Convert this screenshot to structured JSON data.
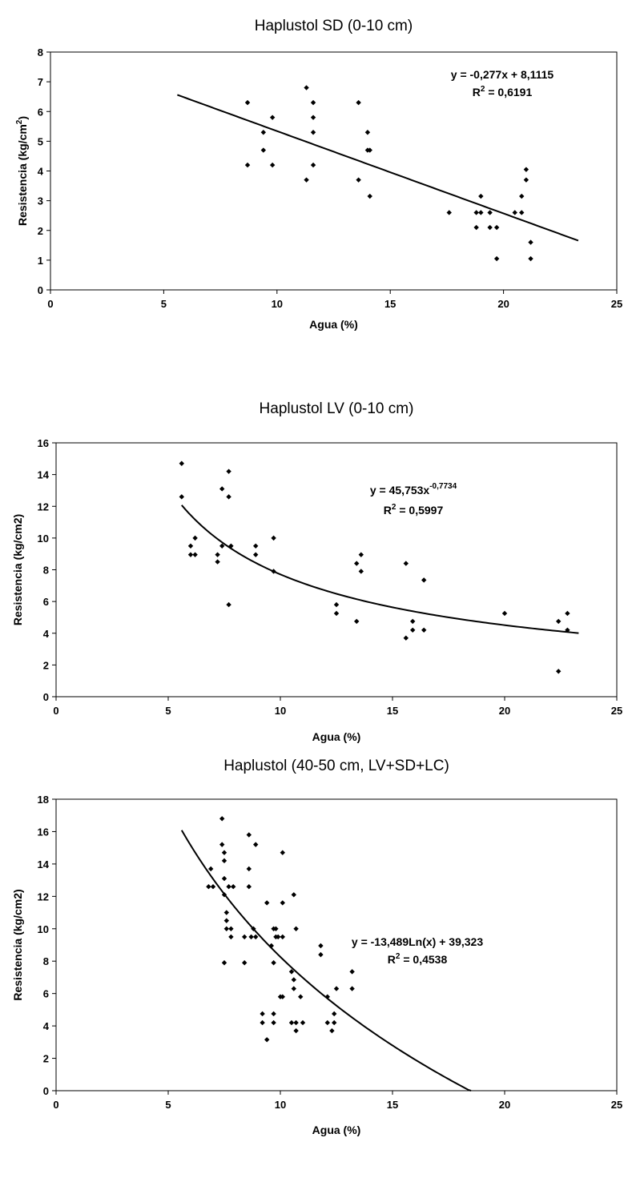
{
  "chart_data": [
    {
      "type": "scatter",
      "title": "Haplustol SD (0-10 cm)",
      "xlabel": "Agua (%)",
      "ylabel_main": "Resistencia (kg/cm",
      "ylabel_sup": "2",
      "ylabel_tail": ")",
      "xlim": [
        0,
        25
      ],
      "ylim": [
        0,
        8
      ],
      "xticks": [
        "0",
        "5",
        "10",
        "15",
        "20",
        "25"
      ],
      "yticks": [
        "0",
        "1",
        "2",
        "3",
        "4",
        "5",
        "6",
        "7",
        "8"
      ],
      "grid": false,
      "series": [
        {
          "points": [
            [
              8.7,
              6.3
            ],
            [
              8.7,
              4.2
            ],
            [
              9.4,
              5.3
            ],
            [
              9.4,
              4.7
            ],
            [
              9.8,
              5.8
            ],
            [
              9.8,
              4.2
            ],
            [
              11.3,
              6.8
            ],
            [
              11.3,
              3.7
            ],
            [
              11.6,
              6.3
            ],
            [
              11.6,
              5.8
            ],
            [
              11.6,
              5.3
            ],
            [
              11.6,
              4.2
            ],
            [
              13.6,
              6.3
            ],
            [
              13.6,
              3.7
            ],
            [
              14.0,
              5.3
            ],
            [
              14.0,
              4.7
            ],
            [
              14.1,
              4.7
            ],
            [
              14.1,
              3.15
            ],
            [
              17.6,
              2.6
            ],
            [
              18.8,
              2.6
            ],
            [
              18.8,
              2.1
            ],
            [
              19.0,
              3.15
            ],
            [
              19.0,
              2.6
            ],
            [
              19.4,
              2.6
            ],
            [
              19.4,
              2.1
            ],
            [
              19.7,
              2.1
            ],
            [
              19.7,
              1.05
            ],
            [
              20.5,
              2.6
            ],
            [
              20.8,
              3.15
            ],
            [
              20.8,
              2.6
            ],
            [
              21.0,
              4.05
            ],
            [
              21.0,
              3.7
            ],
            [
              21.2,
              1.6
            ],
            [
              21.2,
              1.05
            ]
          ]
        }
      ],
      "trendline": {
        "kind": "linear",
        "a": -0.277,
        "b": 8.1115,
        "x_range": [
          5.6,
          23.3
        ]
      },
      "equation": {
        "main": "y = -0,277x + 8,1115",
        "r2_prefix": "R",
        "r2_sup": "2",
        "r2_rest": " = 0,6191"
      }
    },
    {
      "type": "scatter",
      "title": "Haplustol LV (0-10 cm)",
      "xlabel": "Agua (%)",
      "ylabel_main": "Resistencia (kg/cm2)",
      "ylabel_sup": "",
      "ylabel_tail": "",
      "xlim": [
        0,
        25
      ],
      "ylim": [
        0,
        16
      ],
      "xticks": [
        "0",
        "5",
        "10",
        "15",
        "20",
        "25"
      ],
      "yticks": [
        "0",
        "2",
        "4",
        "6",
        "8",
        "10",
        "12",
        "14",
        "16"
      ],
      "grid": false,
      "series": [
        {
          "points": [
            [
              5.6,
              14.7
            ],
            [
              5.6,
              12.6
            ],
            [
              6.0,
              9.5
            ],
            [
              6.0,
              8.95
            ],
            [
              6.2,
              10.0
            ],
            [
              6.2,
              8.95
            ],
            [
              7.2,
              8.95
            ],
            [
              7.2,
              8.5
            ],
            [
              7.4,
              13.1
            ],
            [
              7.4,
              9.5
            ],
            [
              7.7,
              14.2
            ],
            [
              7.7,
              12.6
            ],
            [
              7.8,
              9.5
            ],
            [
              7.7,
              5.8
            ],
            [
              8.9,
              9.5
            ],
            [
              8.9,
              8.95
            ],
            [
              9.7,
              10.0
            ],
            [
              9.7,
              7.9
            ],
            [
              12.5,
              5.8
            ],
            [
              12.5,
              5.25
            ],
            [
              13.4,
              8.4
            ],
            [
              13.4,
              4.75
            ],
            [
              13.6,
              8.95
            ],
            [
              13.6,
              7.9
            ],
            [
              15.6,
              8.4
            ],
            [
              15.6,
              3.7
            ],
            [
              15.9,
              4.75
            ],
            [
              15.9,
              4.2
            ],
            [
              16.4,
              7.35
            ],
            [
              16.4,
              4.2
            ],
            [
              20.0,
              5.25
            ],
            [
              22.4,
              4.75
            ],
            [
              22.4,
              1.6
            ],
            [
              22.8,
              5.25
            ],
            [
              22.8,
              4.2
            ]
          ]
        }
      ],
      "trendline": {
        "kind": "power",
        "a": 45.753,
        "b": -0.7734,
        "x_range": [
          5.6,
          23.3
        ]
      },
      "equation": {
        "main": "y = 45,753x",
        "main_sup": "-0,7734",
        "r2_prefix": "R",
        "r2_sup": "2",
        "r2_rest": " = 0,5997"
      }
    },
    {
      "type": "scatter",
      "title": "Haplustol (40-50 cm, LV+SD+LC)",
      "xlabel": "Agua (%)",
      "ylabel_main": "Resistencia (kg/cm2)",
      "ylabel_sup": "",
      "ylabel_tail": "",
      "xlim": [
        0,
        25
      ],
      "ylim": [
        0,
        18
      ],
      "xticks": [
        "0",
        "5",
        "10",
        "15",
        "20",
        "25"
      ],
      "yticks": [
        "0",
        "2",
        "4",
        "6",
        "8",
        "10",
        "12",
        "14",
        "16",
        "18"
      ],
      "grid": false,
      "series": [
        {
          "points": [
            [
              6.8,
              12.6
            ],
            [
              6.9,
              13.7
            ],
            [
              7.0,
              12.6
            ],
            [
              7.4,
              16.8
            ],
            [
              7.4,
              15.2
            ],
            [
              7.5,
              14.7
            ],
            [
              7.5,
              14.2
            ],
            [
              7.5,
              13.1
            ],
            [
              7.5,
              12.1
            ],
            [
              7.5,
              7.9
            ],
            [
              7.6,
              11.0
            ],
            [
              7.6,
              10.5
            ],
            [
              7.6,
              10.0
            ],
            [
              7.7,
              12.6
            ],
            [
              7.8,
              10.0
            ],
            [
              7.8,
              9.5
            ],
            [
              7.9,
              12.6
            ],
            [
              8.4,
              9.5
            ],
            [
              8.4,
              7.9
            ],
            [
              8.6,
              15.8
            ],
            [
              8.6,
              13.7
            ],
            [
              8.6,
              12.6
            ],
            [
              8.7,
              9.5
            ],
            [
              8.8,
              10.0
            ],
            [
              8.9,
              15.2
            ],
            [
              8.9,
              9.5
            ],
            [
              9.2,
              4.75
            ],
            [
              9.2,
              4.2
            ],
            [
              9.4,
              11.6
            ],
            [
              9.4,
              3.15
            ],
            [
              9.6,
              8.95
            ],
            [
              9.7,
              10.0
            ],
            [
              9.7,
              7.9
            ],
            [
              9.7,
              4.75
            ],
            [
              9.7,
              4.2
            ],
            [
              9.8,
              10.0
            ],
            [
              9.8,
              9.5
            ],
            [
              9.9,
              9.5
            ],
            [
              10.0,
              5.8
            ],
            [
              10.1,
              14.7
            ],
            [
              10.1,
              11.6
            ],
            [
              10.1,
              9.5
            ],
            [
              10.1,
              5.8
            ],
            [
              10.5,
              7.35
            ],
            [
              10.5,
              4.2
            ],
            [
              10.6,
              12.1
            ],
            [
              10.6,
              6.85
            ],
            [
              10.6,
              6.3
            ],
            [
              10.7,
              10.0
            ],
            [
              10.7,
              4.2
            ],
            [
              10.7,
              3.7
            ],
            [
              10.9,
              5.8
            ],
            [
              11.0,
              4.2
            ],
            [
              11.8,
              8.95
            ],
            [
              11.8,
              8.4
            ],
            [
              12.1,
              5.8
            ],
            [
              12.1,
              4.2
            ],
            [
              12.3,
              3.7
            ],
            [
              12.4,
              4.75
            ],
            [
              12.4,
              4.2
            ],
            [
              12.5,
              6.3
            ],
            [
              13.2,
              7.35
            ],
            [
              13.2,
              6.3
            ]
          ]
        }
      ],
      "trendline": {
        "kind": "log",
        "a": -13.489,
        "b": 39.323,
        "x_range": [
          5.6,
          18.5
        ]
      },
      "equation": {
        "main": "y = -13,489Ln(x) + 39,323",
        "r2_prefix": "R",
        "r2_sup": "2",
        "r2_rest": " = 0,4538"
      }
    }
  ]
}
